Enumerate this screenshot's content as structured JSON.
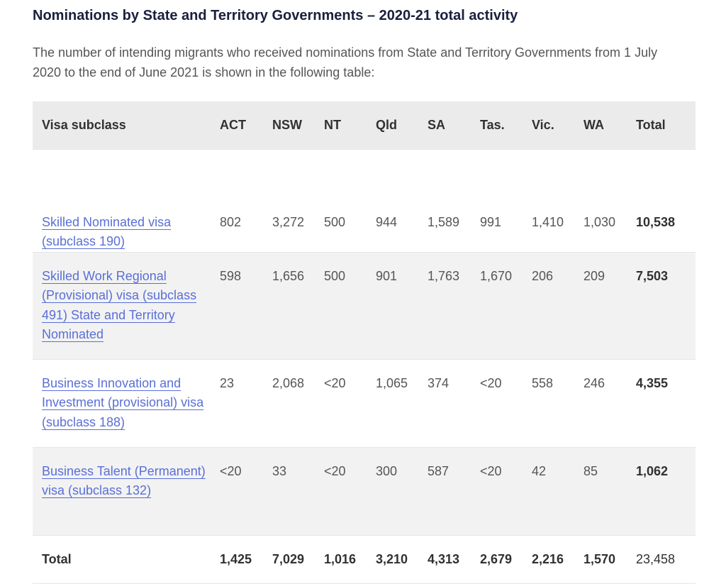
{
  "title": "Nominations by State and Territory Governments – 2020-21 total activity",
  "intro": "The number of intending migrants who received nominations from State and Territory Governments from 1 July 2020 to the end of June 2021 is shown in the following table:",
  "table": {
    "headers": [
      "Visa subclass",
      "ACT",
      "NSW",
      "NT",
      "Qld",
      "SA",
      "Tas.",
      "Vic.",
      "WA",
      "Total"
    ],
    "rows": [
      {
        "visa": "Skilled Nominated visa (subclass 190)",
        "act": "802",
        "nsw": "3,272",
        "nt": "500",
        "qld": "944",
        "sa": "1,589",
        "tas": "991",
        "vic": "1,410",
        "wa": "1,030",
        "total": "10,538"
      },
      {
        "visa": "Skilled Work Regional (Provisional) visa (subclass 491) State and Territory Nominated",
        "act": "598",
        "nsw": "1,656",
        "nt": "500",
        "qld": "901",
        "sa": "1,763",
        "tas": "1,670",
        "vic": "206",
        "wa": "209",
        "total": "7,503"
      },
      {
        "visa": "Business Innovation and Investment (provisional) visa (subclass 188)",
        "act": "23",
        "nsw": "2,068",
        "nt": "<20",
        "qld": "1,065",
        "sa": "374",
        "tas": "<20",
        "vic": "558",
        "wa": "246",
        "total": "4,355"
      },
      {
        "visa": "Business Talent (Permanent) visa (subclass 132)",
        "act": "<20",
        "nsw": "33",
        "nt": "<20",
        "qld": "300",
        "sa": "587",
        "tas": "<20",
        "vic": "42",
        "wa": "85",
        "total": "1,062"
      }
    ],
    "totals": {
      "label": "Total",
      "act": "1,425",
      "nsw": "7,029",
      "nt": "1,016",
      "qld": "3,210",
      "sa": "4,313",
      "tas": "2,679",
      "vic": "2,216",
      "wa": "1,570",
      "total": "23,458"
    }
  },
  "colors": {
    "link": "#5a6fd6",
    "header_bg": "#ebebeb",
    "shaded_row": "#f2f2f2",
    "title": "#1a1f3d"
  }
}
